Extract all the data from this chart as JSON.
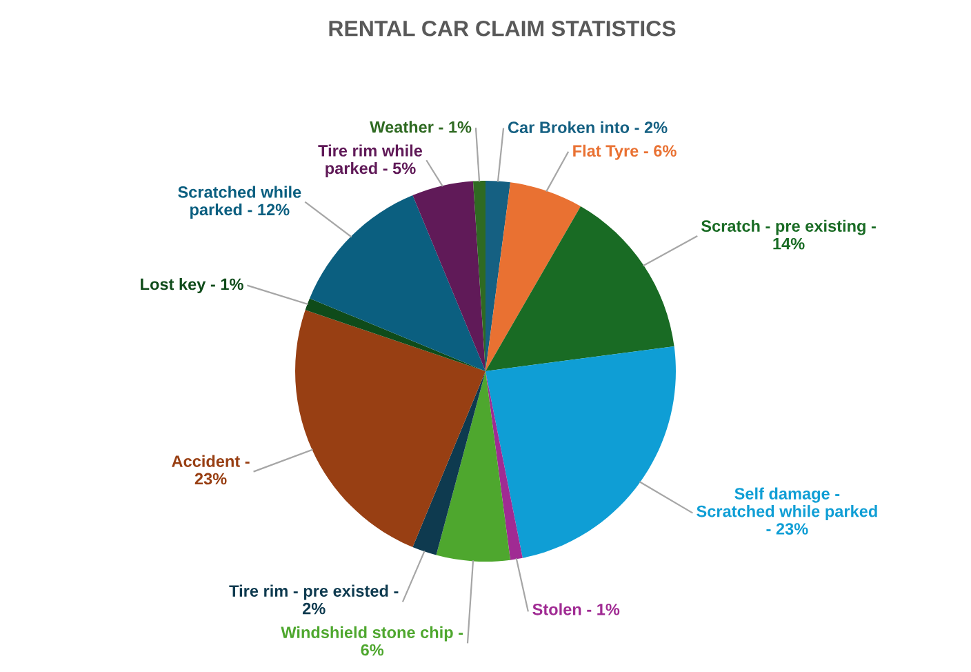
{
  "chart_data": {
    "type": "pie",
    "title": "RENTAL CAR CLAIM STATISTICS",
    "categories": [
      "Car Broken into - 2%",
      "Flat Tyre - 6%",
      "Scratch - pre existing -\n14%",
      "Self damage -\nScratched while parked\n- 23%",
      "Stolen - 1%",
      "Windshield stone chip -\n6%",
      "Tire rim - pre existed -\n2%",
      "Accident -\n23%",
      "Lost key - 1%",
      "Scratched while\nparked - 12%",
      "Tire rim while\nparked - 5%",
      "Weather - 1%"
    ],
    "values": [
      2,
      6,
      14,
      23,
      1,
      6,
      2,
      23,
      1,
      12,
      5,
      1
    ],
    "colors": [
      "#156082",
      "#E97132",
      "#196B24",
      "#0F9ED5",
      "#A02B93",
      "#4EA72E",
      "#0E3A4F",
      "#983F13",
      "#0F4B1A",
      "#0B5F80",
      "#601A58",
      "#2F6A22"
    ]
  }
}
